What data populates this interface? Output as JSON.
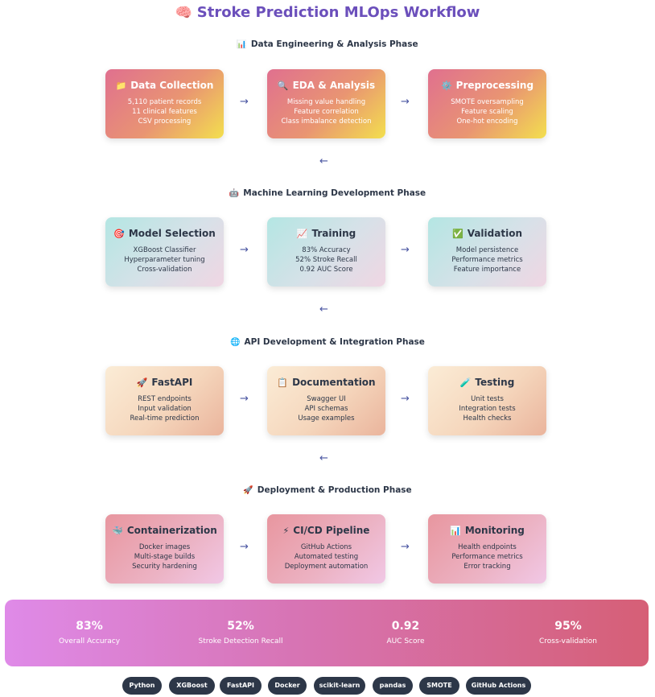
{
  "title": {
    "emoji": "🧠",
    "text": "Stroke Prediction MLOps Workflow"
  },
  "phases": [
    {
      "emoji": "📊",
      "title": "Data Engineering & Analysis Phase",
      "cards": [
        {
          "emoji": "📁",
          "title": "Data Collection",
          "lines": [
            "5,110 patient records",
            "11 clinical features",
            "CSV processing"
          ]
        },
        {
          "emoji": "🔍",
          "title": "EDA & Analysis",
          "lines": [
            "Missing value handling",
            "Feature correlation",
            "Class imbalance detection"
          ]
        },
        {
          "emoji": "⚙️",
          "title": "Preprocessing",
          "lines": [
            "SMOTE oversampling",
            "Feature scaling",
            "One-hot encoding"
          ]
        }
      ]
    },
    {
      "emoji": "🤖",
      "title": "Machine Learning Development Phase",
      "cards": [
        {
          "emoji": "🎯",
          "title": "Model Selection",
          "lines": [
            "XGBoost Classifier",
            "Hyperparameter tuning",
            "Cross-validation"
          ]
        },
        {
          "emoji": "📈",
          "title": "Training",
          "lines": [
            "83% Accuracy",
            "52% Stroke Recall",
            "0.92 AUC Score"
          ]
        },
        {
          "emoji": "✅",
          "title": "Validation",
          "lines": [
            "Model persistence",
            "Performance metrics",
            "Feature importance"
          ]
        }
      ]
    },
    {
      "emoji": "🌐",
      "title": "API Development & Integration Phase",
      "cards": [
        {
          "emoji": "🚀",
          "title": "FastAPI",
          "lines": [
            "REST endpoints",
            "Input validation",
            "Real-time prediction"
          ]
        },
        {
          "emoji": "📋",
          "title": "Documentation",
          "lines": [
            "Swagger UI",
            "API schemas",
            "Usage examples"
          ]
        },
        {
          "emoji": "🧪",
          "title": "Testing",
          "lines": [
            "Unit tests",
            "Integration tests",
            "Health checks"
          ]
        }
      ]
    },
    {
      "emoji": "🚀",
      "title": "Deployment & Production Phase",
      "cards": [
        {
          "emoji": "🐳",
          "title": "Containerization",
          "lines": [
            "Docker images",
            "Multi-stage builds",
            "Security hardening"
          ]
        },
        {
          "emoji": "⚡",
          "title": "CI/CD Pipeline",
          "lines": [
            "GitHub Actions",
            "Automated testing",
            "Deployment automation"
          ]
        },
        {
          "emoji": "📊",
          "title": "Monitoring",
          "lines": [
            "Health endpoints",
            "Performance metrics",
            "Error tracking"
          ]
        }
      ]
    }
  ],
  "arrows": {
    "forward": "→",
    "back": "←"
  },
  "stats": [
    {
      "value": "83%",
      "label": "Overall Accuracy"
    },
    {
      "value": "52%",
      "label": "Stroke Detection Recall"
    },
    {
      "value": "0.92",
      "label": "AUC Score"
    },
    {
      "value": "95%",
      "label": "Cross-validation"
    }
  ],
  "tags": [
    "Python",
    "XGBoost",
    "FastAPI",
    "Docker",
    "scikit-learn",
    "pandas",
    "SMOTE",
    "GitHub Actions"
  ],
  "colors": {
    "title": "#6b4fbb",
    "arrow": "#4a55a2",
    "tag_background": "#2d3748",
    "stats_gradient": [
      "#df8ae8",
      "#d774b4",
      "#d65f76"
    ]
  }
}
